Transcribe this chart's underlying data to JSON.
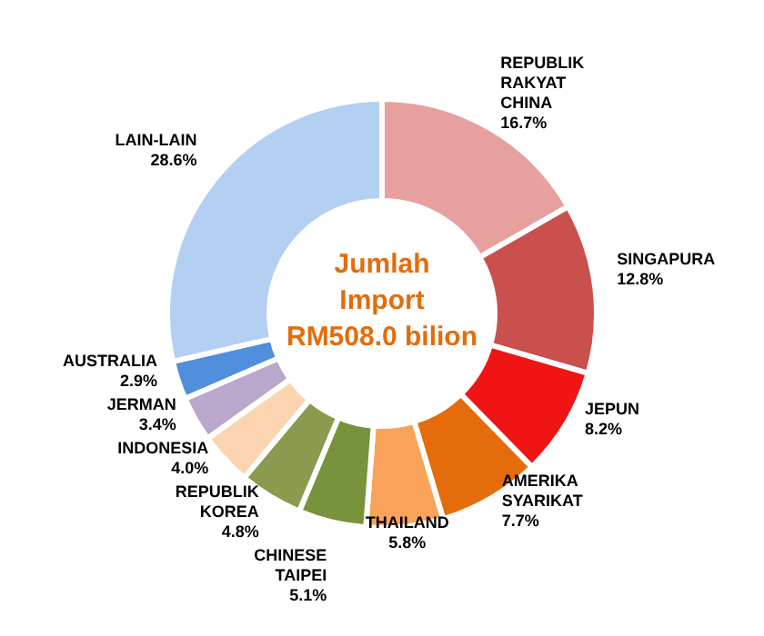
{
  "chart_data": {
    "type": "donut",
    "categories": [
      "REPUBLIK RAKYAT CHINA",
      "SINGAPURA",
      "JEPUN",
      "AMERIKA SYARIKAT",
      "THAILAND",
      "CHINESE TAIPEI",
      "REPUBLIK KOREA",
      "INDONESIA",
      "JERMAN",
      "AUSTRALIA",
      "LAIN-LAIN"
    ],
    "values": [
      16.7,
      12.8,
      8.2,
      7.7,
      5.8,
      5.1,
      4.8,
      4.0,
      3.4,
      2.9,
      28.6
    ],
    "value_labels": [
      "16.7%",
      "12.8%",
      "8.2%",
      "7.7%",
      "5.8%",
      "5.1%",
      "4.8%",
      "4.0%",
      "3.4%",
      "2.9%",
      "28.6%"
    ],
    "colors": [
      "#e6a19e",
      "#c9504d",
      "#f01414",
      "#e46c0a",
      "#f9a35a",
      "#77933c",
      "#8a9a4e",
      "#fcd5b0",
      "#b9a7cc",
      "#4f8fdc",
      "#b3cff2"
    ],
    "annotations": [
      "Jumlah",
      "Import",
      "RM508.0 bilion"
    ]
  }
}
